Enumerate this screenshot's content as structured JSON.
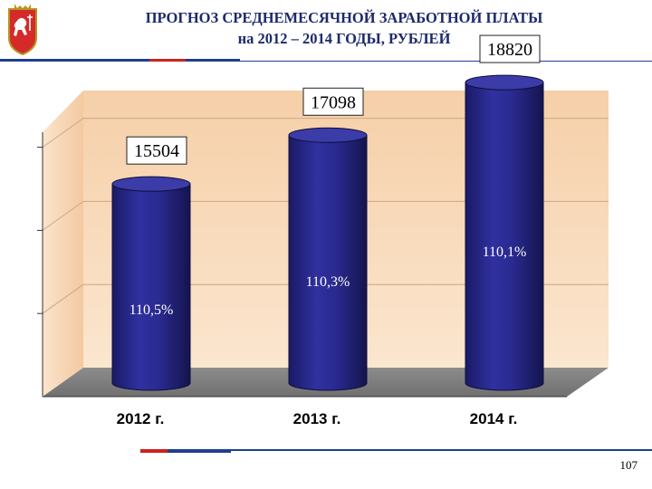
{
  "header": {
    "title_line1": "ПРОГНОЗ СРЕДНЕМЕСЯЧНОЙ ЗАРАБОТНОЙ ПЛАТЫ",
    "title_line2": "на 2012 – 2014 ГОДЫ, РУБЛЕЙ"
  },
  "page_number": "107",
  "colors": {
    "bar": "#2a2a8c",
    "bar_dark": "#1a1a5e",
    "bar_top": "#3c3ca8",
    "wall": "#f8d9b8",
    "floor": "#8a8a8a",
    "stripe_red": "#cc2222",
    "stripe_blue": "#1f3f8f",
    "title": "#1d2a6b"
  },
  "chart_data": {
    "type": "bar",
    "categories": [
      "2012 г.",
      "2013 г.",
      "2014 г."
    ],
    "values": [
      15504,
      17098,
      18820
    ],
    "value_labels": [
      "15504",
      "17098",
      "18820"
    ],
    "growth_labels": [
      "110,5%",
      "110,3%",
      "110,1%"
    ],
    "ylim": [
      9000,
      19000
    ],
    "grid": true,
    "style": "3d-cylinder"
  }
}
